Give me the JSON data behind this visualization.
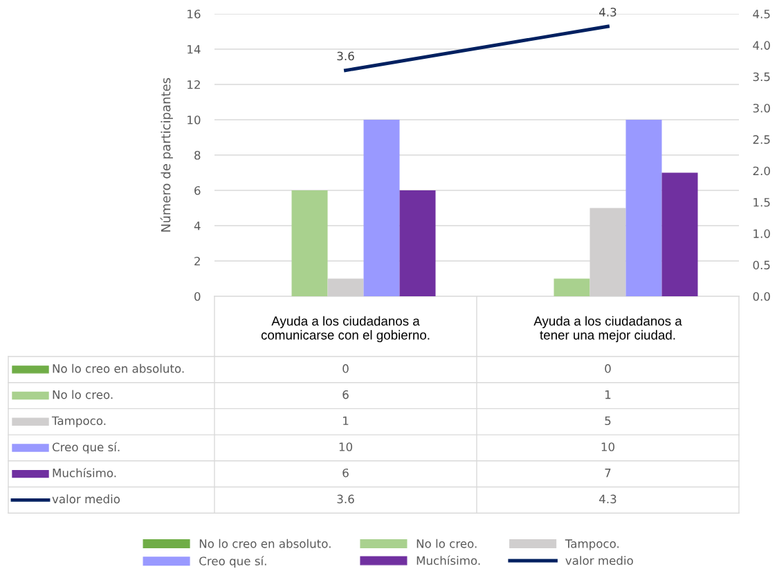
{
  "chart_data": {
    "type": "bar",
    "ylabel": "Número de participantes",
    "categories": [
      "Ayuda a los ciudadanos a\ncomunicarse con el gobierno.",
      "Ayuda a los ciudadanos a\ntener una mejor ciudad."
    ],
    "series": [
      {
        "name": "No lo creo en absoluto.",
        "color": "#70ad47",
        "values": [
          0,
          0
        ]
      },
      {
        "name": "No lo creo.",
        "color": "#a9d18e",
        "values": [
          6,
          1
        ]
      },
      {
        "name": "Tampoco.",
        "color": "#d0cece",
        "values": [
          1,
          5
        ]
      },
      {
        "name": "Creo que sí.",
        "color": "#9999ff",
        "values": [
          10,
          10
        ]
      },
      {
        "name": "Muchísimo.",
        "color": "#7030a0",
        "values": [
          6,
          7
        ]
      },
      {
        "name": "valor medio",
        "color": "#002060",
        "type": "line",
        "axis": "y2",
        "values": [
          3.6,
          4.3
        ],
        "value_labels": [
          "3.6",
          "4.3"
        ]
      }
    ],
    "ylim": [
      0,
      16
    ],
    "yticks": [
      0,
      2,
      4,
      6,
      8,
      10,
      12,
      14,
      16
    ],
    "y2lim": [
      0,
      4.5
    ],
    "y2ticks": [
      {
        "value": 0,
        "label": "0.0"
      },
      {
        "value": 0.5,
        "label": "0.5"
      },
      {
        "value": 1,
        "label": "1.0"
      },
      {
        "value": 1.5,
        "label": "1.5"
      },
      {
        "value": 2,
        "label": "2.0"
      },
      {
        "value": 2.5,
        "label": "2.5"
      },
      {
        "value": 3,
        "label": "3.0"
      },
      {
        "value": 3.5,
        "label": "3.5"
      },
      {
        "value": 4,
        "label": "4.0"
      },
      {
        "value": 4.5,
        "label": "4.5"
      }
    ],
    "grid": "y",
    "legend": "bottom",
    "data_labels": true
  }
}
